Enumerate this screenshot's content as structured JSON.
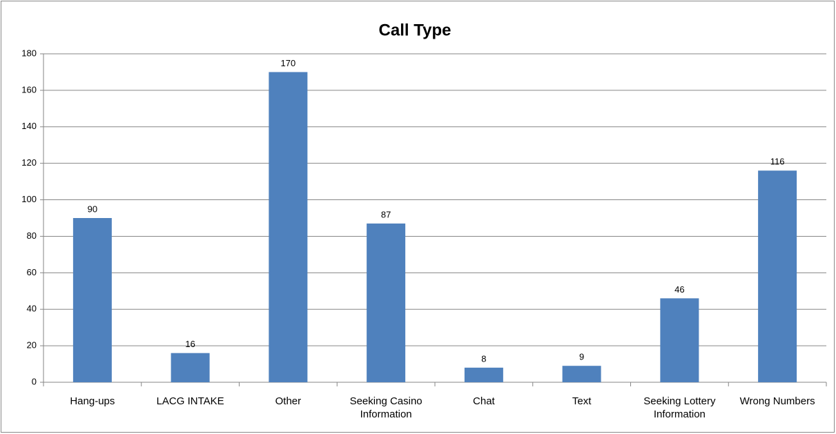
{
  "chart_data": {
    "type": "bar",
    "title": "Call Type",
    "categories": [
      "Hang-ups",
      "LACG INTAKE",
      "Other",
      "Seeking Casino Information",
      "Chat",
      "Text",
      "Seeking Lottery Information",
      "Wrong Numbers"
    ],
    "values": [
      90,
      16,
      170,
      87,
      8,
      9,
      46,
      116
    ],
    "color": "#4f81bd",
    "ylim": [
      0,
      180
    ],
    "yticks": [
      0,
      20,
      40,
      60,
      80,
      100,
      120,
      140,
      160,
      180
    ],
    "grid": true
  }
}
